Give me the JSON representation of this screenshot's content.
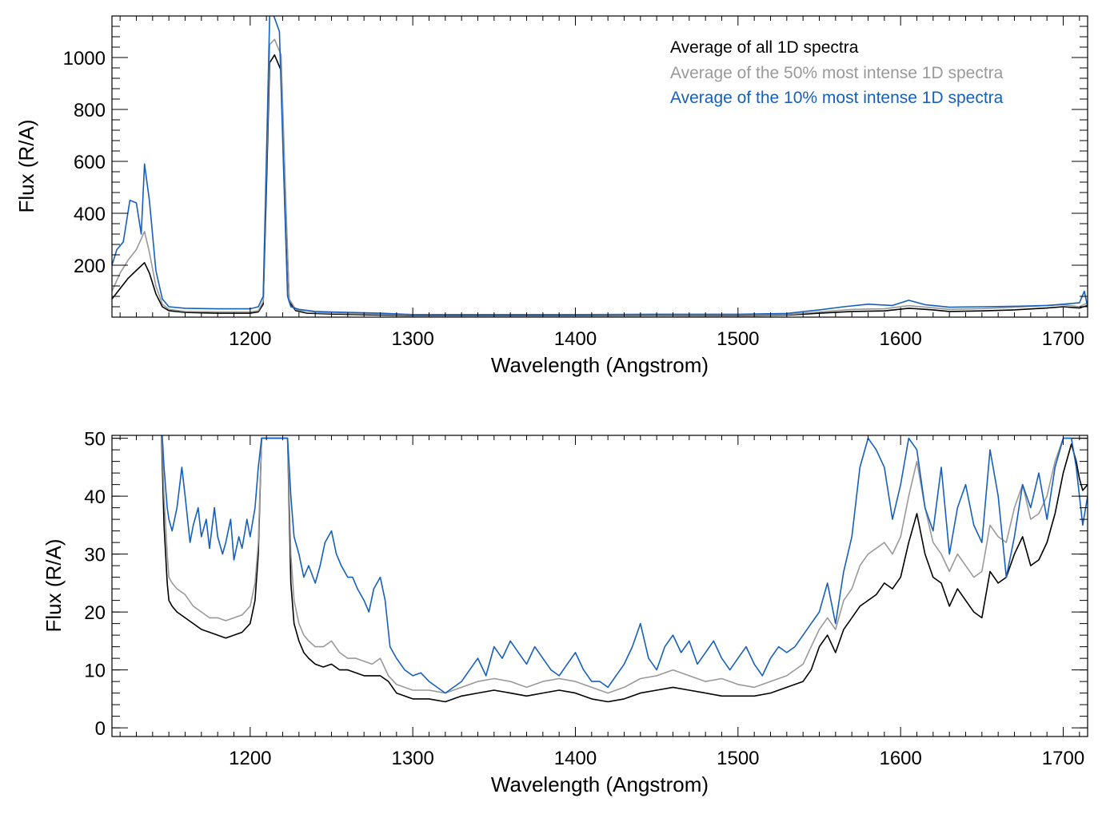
{
  "colors": {
    "all": "#000000",
    "top50": "#999999",
    "top10": "#1560bd"
  },
  "chart_data": [
    {
      "type": "line",
      "panel": "top",
      "xlabel": "Wavelength (Angstrom)",
      "ylabel": "Flux (R/A)",
      "xlim": [
        1115,
        1715
      ],
      "ylim": [
        0,
        1160
      ],
      "xticks": [
        1200,
        1300,
        1400,
        1500,
        1600,
        1700
      ],
      "xtick_labels": [
        "1200",
        "1300",
        "1400",
        "1500",
        "1600",
        "1700"
      ],
      "yticks": [
        200,
        400,
        600,
        800,
        1000
      ],
      "ytick_labels": [
        "200",
        "400",
        "600",
        "800",
        "1000"
      ],
      "legend": [
        {
          "label": "Average of all 1D spectra",
          "color": "#000000"
        },
        {
          "label": "Average of the 50% most intense 1D spectra",
          "color": "#999999"
        },
        {
          "label": "Average of the 10% most intense 1D spectra",
          "color": "#1560bd"
        }
      ],
      "series": [
        {
          "name": "Average of all 1D spectra",
          "color": "#000000",
          "x": [
            1115,
            1120,
            1125,
            1130,
            1135,
            1138,
            1142,
            1146,
            1150,
            1160,
            1180,
            1200,
            1205,
            1208,
            1210,
            1212,
            1215,
            1219,
            1222,
            1224,
            1228,
            1235,
            1250,
            1280,
            1300,
            1350,
            1400,
            1450,
            1500,
            1530,
            1550,
            1570,
            1590,
            1605,
            1620,
            1630,
            1650,
            1670,
            1690,
            1700,
            1710,
            1715
          ],
          "y": [
            70,
            110,
            150,
            180,
            210,
            170,
            90,
            40,
            25,
            18,
            15,
            15,
            20,
            50,
            500,
            980,
            1010,
            950,
            400,
            60,
            25,
            15,
            12,
            8,
            6,
            6,
            6,
            7,
            6,
            8,
            15,
            22,
            24,
            34,
            28,
            22,
            24,
            28,
            35,
            40,
            35,
            45
          ]
        },
        {
          "name": "Average of the 50% most intense 1D spectra",
          "color": "#999999",
          "x": [
            1115,
            1120,
            1125,
            1130,
            1135,
            1138,
            1142,
            1146,
            1150,
            1160,
            1180,
            1200,
            1205,
            1208,
            1210,
            1212,
            1215,
            1219,
            1222,
            1224,
            1228,
            1235,
            1250,
            1280,
            1300,
            1350,
            1400,
            1450,
            1500,
            1530,
            1550,
            1570,
            1590,
            1605,
            1620,
            1630,
            1650,
            1670,
            1690,
            1700,
            1710,
            1715
          ],
          "y": [
            100,
            170,
            220,
            260,
            330,
            250,
            120,
            50,
            30,
            22,
            20,
            20,
            25,
            60,
            560,
            1050,
            1070,
            1010,
            430,
            70,
            30,
            18,
            15,
            11,
            8,
            8,
            8,
            9,
            8,
            10,
            20,
            30,
            32,
            44,
            36,
            30,
            33,
            38,
            45,
            48,
            40,
            55
          ]
        },
        {
          "name": "Average of the 10% most intense 1D spectra",
          "color": "#1560bd",
          "x": [
            1115,
            1118,
            1122,
            1126,
            1130,
            1133,
            1135,
            1138,
            1142,
            1146,
            1150,
            1160,
            1180,
            1200,
            1205,
            1208,
            1210,
            1212,
            1214,
            1218,
            1221,
            1223,
            1225,
            1230,
            1240,
            1250,
            1280,
            1300,
            1350,
            1400,
            1450,
            1500,
            1530,
            1550,
            1565,
            1580,
            1595,
            1605,
            1615,
            1630,
            1650,
            1670,
            1690,
            1700,
            1710,
            1713,
            1715
          ],
          "y": [
            200,
            260,
            290,
            450,
            440,
            320,
            590,
            450,
            180,
            70,
            40,
            34,
            32,
            32,
            40,
            80,
            620,
            1160,
            1170,
            1100,
            480,
            80,
            40,
            30,
            22,
            20,
            15,
            10,
            10,
            10,
            11,
            11,
            14,
            28,
            40,
            50,
            45,
            65,
            48,
            38,
            40,
            42,
            45,
            50,
            55,
            100,
            40
          ]
        }
      ]
    },
    {
      "type": "line",
      "panel": "bottom",
      "xlabel": "Wavelength (Angstrom)",
      "ylabel": "Flux (R/A)",
      "xlim": [
        1115,
        1715
      ],
      "ylim": [
        -1.5,
        50.5
      ],
      "xticks": [
        1200,
        1300,
        1400,
        1500,
        1600,
        1700
      ],
      "xtick_labels": [
        "1200",
        "1300",
        "1400",
        "1500",
        "1600",
        "1700"
      ],
      "yticks": [
        0,
        10,
        20,
        30,
        40,
        50
      ],
      "ytick_labels": [
        "0",
        "10",
        "20",
        "30",
        "40",
        "50"
      ],
      "series": [
        {
          "name": "Average of all 1D spectra",
          "color": "#000000",
          "x": [
            1145,
            1147,
            1149,
            1150,
            1152,
            1155,
            1160,
            1165,
            1170,
            1175,
            1180,
            1185,
            1190,
            1195,
            1200,
            1203,
            1205,
            1207,
            1223,
            1225,
            1227,
            1230,
            1233,
            1236,
            1240,
            1245,
            1250,
            1255,
            1260,
            1265,
            1270,
            1275,
            1280,
            1285,
            1290,
            1295,
            1300,
            1310,
            1320,
            1330,
            1340,
            1350,
            1360,
            1370,
            1380,
            1390,
            1400,
            1410,
            1420,
            1430,
            1440,
            1450,
            1460,
            1470,
            1480,
            1490,
            1500,
            1510,
            1520,
            1530,
            1535,
            1540,
            1545,
            1550,
            1555,
            1560,
            1565,
            1570,
            1575,
            1580,
            1585,
            1590,
            1595,
            1600,
            1605,
            1610,
            1615,
            1620,
            1625,
            1630,
            1635,
            1640,
            1645,
            1650,
            1655,
            1660,
            1665,
            1670,
            1675,
            1680,
            1685,
            1690,
            1695,
            1700,
            1705,
            1708,
            1710,
            1712,
            1715
          ],
          "y": [
            55,
            35,
            25,
            22,
            21,
            20,
            19,
            18,
            17,
            16.5,
            16,
            15.5,
            16,
            16.5,
            18,
            22,
            30,
            50,
            50,
            25,
            18,
            15,
            13,
            12,
            11,
            10.5,
            11,
            10,
            10,
            9.5,
            9,
            9,
            9,
            8,
            6,
            5.5,
            5,
            5,
            4.5,
            5.5,
            6,
            6.5,
            6,
            5.5,
            6,
            6.5,
            6,
            5,
            4.5,
            5,
            6,
            6.5,
            7,
            6.5,
            6,
            5.5,
            5.5,
            5.5,
            6,
            7,
            7.5,
            8,
            10,
            14,
            16,
            13,
            17,
            19,
            21,
            22,
            23,
            25,
            24,
            26,
            32,
            37,
            30,
            26,
            25,
            21,
            24,
            22,
            20,
            19,
            27,
            25,
            26,
            30,
            33,
            28,
            29,
            32,
            37,
            44,
            49,
            46,
            43,
            41,
            42
          ]
        },
        {
          "name": "Average of the 50% most intense 1D spectra",
          "color": "#999999",
          "x": [
            1145,
            1147,
            1149,
            1150,
            1152,
            1155,
            1160,
            1165,
            1170,
            1175,
            1180,
            1185,
            1190,
            1195,
            1200,
            1203,
            1205,
            1207,
            1223,
            1225,
            1227,
            1230,
            1233,
            1236,
            1240,
            1245,
            1250,
            1255,
            1260,
            1265,
            1270,
            1275,
            1280,
            1285,
            1290,
            1295,
            1300,
            1310,
            1320,
            1330,
            1340,
            1350,
            1360,
            1370,
            1380,
            1390,
            1400,
            1410,
            1420,
            1430,
            1440,
            1450,
            1460,
            1470,
            1480,
            1490,
            1500,
            1510,
            1520,
            1530,
            1535,
            1540,
            1545,
            1550,
            1555,
            1560,
            1565,
            1570,
            1575,
            1580,
            1585,
            1590,
            1595,
            1600,
            1605,
            1610,
            1615,
            1620,
            1625,
            1630,
            1635,
            1640,
            1645,
            1650,
            1655,
            1660,
            1665,
            1670,
            1675,
            1680,
            1685,
            1690,
            1695,
            1700,
            1705,
            1708,
            1710,
            1712,
            1715
          ],
          "y": [
            55,
            40,
            30,
            26,
            25,
            24,
            23,
            21,
            20,
            19,
            19,
            18.5,
            19,
            19.5,
            21,
            25,
            32,
            50,
            50,
            30,
            22,
            18,
            16,
            15,
            14,
            14,
            15,
            13,
            12,
            12,
            11.5,
            11,
            12,
            9,
            7.5,
            7,
            6.5,
            6.5,
            6,
            7,
            8,
            8.5,
            8,
            7,
            8,
            8.5,
            8,
            7,
            6,
            7,
            8.5,
            9,
            10,
            9,
            8,
            8.5,
            7.5,
            7,
            8,
            9,
            10,
            11,
            14,
            17,
            19,
            17,
            22,
            24,
            28,
            30,
            31,
            32,
            30,
            33,
            40,
            46,
            38,
            32,
            30,
            27,
            30,
            28,
            26,
            27,
            35,
            33,
            32,
            38,
            42,
            36,
            37,
            40,
            46,
            50,
            50,
            50,
            50,
            50,
            50
          ]
        },
        {
          "name": "Average of the 10% most intense 1D spectra",
          "color": "#1560bd",
          "x": [
            1145,
            1147,
            1149,
            1150,
            1152,
            1155,
            1158,
            1160,
            1163,
            1165,
            1168,
            1170,
            1173,
            1175,
            1178,
            1180,
            1183,
            1185,
            1188,
            1190,
            1193,
            1195,
            1198,
            1200,
            1203,
            1205,
            1207,
            1223,
            1225,
            1227,
            1230,
            1233,
            1236,
            1240,
            1243,
            1246,
            1250,
            1253,
            1256,
            1260,
            1263,
            1266,
            1270,
            1273,
            1276,
            1280,
            1283,
            1286,
            1290,
            1295,
            1300,
            1305,
            1310,
            1315,
            1320,
            1325,
            1330,
            1335,
            1340,
            1345,
            1350,
            1355,
            1360,
            1365,
            1370,
            1375,
            1380,
            1385,
            1390,
            1395,
            1400,
            1405,
            1410,
            1415,
            1420,
            1425,
            1430,
            1435,
            1440,
            1445,
            1450,
            1455,
            1460,
            1465,
            1470,
            1475,
            1480,
            1485,
            1490,
            1495,
            1500,
            1505,
            1510,
            1515,
            1520,
            1525,
            1530,
            1535,
            1540,
            1545,
            1550,
            1555,
            1560,
            1565,
            1570,
            1575,
            1580,
            1585,
            1590,
            1595,
            1600,
            1605,
            1610,
            1615,
            1620,
            1625,
            1630,
            1635,
            1640,
            1645,
            1650,
            1655,
            1660,
            1665,
            1670,
            1675,
            1680,
            1685,
            1690,
            1695,
            1700,
            1705,
            1708,
            1710,
            1712,
            1715
          ],
          "y": [
            55,
            45,
            38,
            36,
            34,
            38,
            45,
            40,
            32,
            35,
            38,
            33,
            36,
            31,
            38,
            33,
            30,
            32,
            36,
            29,
            33,
            31,
            36,
            33,
            38,
            45,
            50,
            50,
            40,
            33,
            30,
            26,
            28,
            25,
            28,
            32,
            34,
            30,
            28,
            26,
            26,
            24,
            22,
            20,
            24,
            26,
            22,
            14,
            12,
            10,
            9,
            9.5,
            8,
            7,
            6,
            7,
            8,
            10,
            12,
            9,
            14,
            12,
            15,
            13,
            11,
            14,
            12,
            10,
            9,
            11,
            13,
            10,
            8,
            8,
            7,
            9,
            11,
            14,
            18,
            12,
            10,
            14,
            16,
            13,
            15,
            11,
            13,
            15,
            12,
            10,
            12,
            14,
            11,
            9,
            12,
            14,
            13,
            14,
            16,
            18,
            20,
            25,
            18,
            27,
            33,
            45,
            50,
            48,
            45,
            36,
            42,
            50,
            48,
            38,
            34,
            45,
            30,
            38,
            42,
            35,
            32,
            48,
            40,
            26,
            33,
            42,
            38,
            44,
            36,
            45,
            50,
            50,
            45,
            40,
            35,
            40
          ]
        }
      ]
    }
  ]
}
